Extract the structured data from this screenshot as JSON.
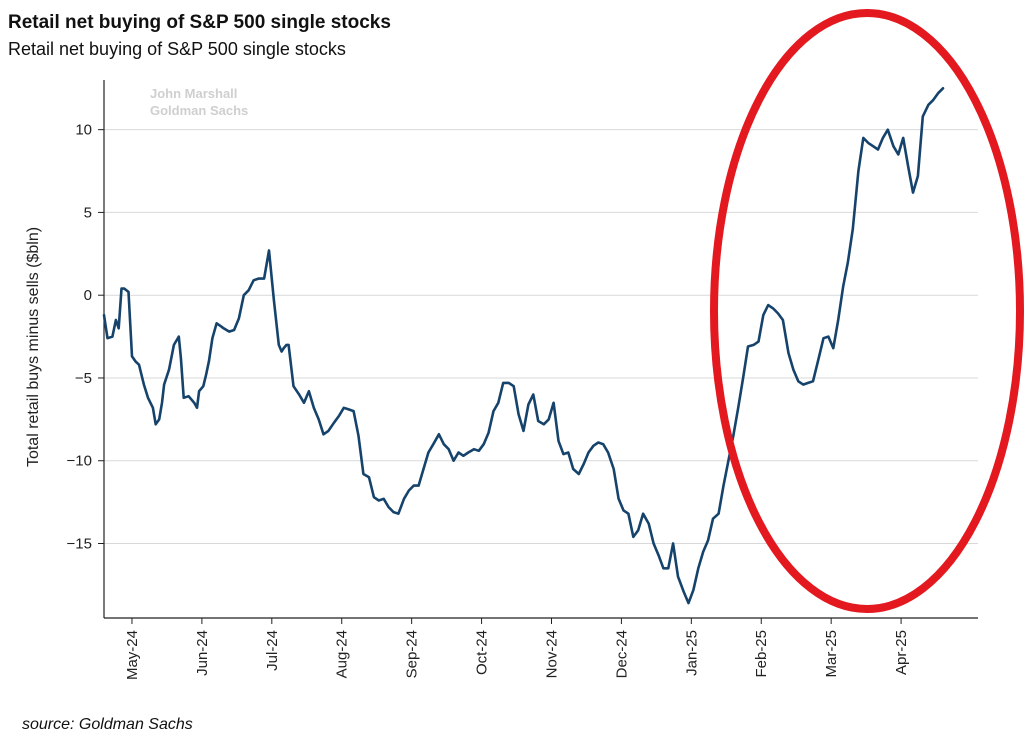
{
  "title": "Retail net buying of S&P 500 single stocks",
  "subtitle": "Retail net buying of S&P 500 single stocks",
  "source": "source: Goldman Sachs",
  "colors": {
    "line": "#15436b",
    "grid": "#d9d9d9",
    "axis": "#222222",
    "highlight": "#e3191f",
    "watermark": "#cfcfcf"
  },
  "chart_data": {
    "type": "line",
    "title": "Retail net buying of S&P 500 single stocks",
    "xlabel": "",
    "ylabel": "Total retail buys minus sells ($bln)",
    "ylim": [
      -19.5,
      13
    ],
    "yticks": [
      -15,
      -10,
      -5,
      0,
      5,
      10
    ],
    "ytick_labels": [
      "−15",
      "−10",
      "−5",
      "0",
      "5",
      "10"
    ],
    "xlim": [
      0,
      12.5
    ],
    "x_ticks": [
      {
        "label": "May-24",
        "x": 0.4
      },
      {
        "label": "Jun-24",
        "x": 1.4
      },
      {
        "label": "Jul-24",
        "x": 2.4
      },
      {
        "label": "Aug-24",
        "x": 3.4
      },
      {
        "label": "Sep-24",
        "x": 4.4
      },
      {
        "label": "Oct-24",
        "x": 5.4
      },
      {
        "label": "Nov-24",
        "x": 6.4
      },
      {
        "label": "Dec-24",
        "x": 7.4
      },
      {
        "label": "Jan-25",
        "x": 8.4
      },
      {
        "label": "Feb-25",
        "x": 9.4
      },
      {
        "label": "Mar-25",
        "x": 10.4
      },
      {
        "label": "Apr-25",
        "x": 11.4
      }
    ],
    "watermark": [
      "John Marshall",
      "Goldman Sachs"
    ],
    "annotation": "red ellipse highlighting the Feb-25 to Apr-25 rally",
    "series": [
      {
        "name": "Retail net buying",
        "x": [
          0.0,
          0.05,
          0.12,
          0.17,
          0.21,
          0.25,
          0.29,
          0.35,
          0.4,
          0.45,
          0.5,
          0.57,
          0.63,
          0.7,
          0.74,
          0.79,
          0.83,
          0.86,
          0.93,
          1.0,
          1.07,
          1.1,
          1.14,
          1.21,
          1.29,
          1.33,
          1.36,
          1.42,
          1.46,
          1.5,
          1.55,
          1.61,
          1.68,
          1.71,
          1.79,
          1.86,
          1.93,
          2.0,
          2.07,
          2.14,
          2.21,
          2.29,
          2.36,
          2.43,
          2.5,
          2.54,
          2.57,
          2.61,
          2.64,
          2.71,
          2.79,
          2.86,
          2.93,
          3.0,
          3.07,
          3.14,
          3.21,
          3.29,
          3.36,
          3.43,
          3.5,
          3.57,
          3.64,
          3.71,
          3.79,
          3.86,
          3.93,
          4.0,
          4.07,
          4.14,
          4.21,
          4.29,
          4.36,
          4.43,
          4.5,
          4.57,
          4.64,
          4.71,
          4.79,
          4.86,
          4.93,
          5.0,
          5.07,
          5.14,
          5.21,
          5.29,
          5.36,
          5.43,
          5.5,
          5.57,
          5.64,
          5.71,
          5.79,
          5.86,
          5.93,
          6.0,
          6.07,
          6.14,
          6.21,
          6.29,
          6.36,
          6.43,
          6.5,
          6.57,
          6.64,
          6.71,
          6.79,
          6.86,
          6.93,
          7.0,
          7.07,
          7.14,
          7.21,
          7.29,
          7.36,
          7.43,
          7.5,
          7.57,
          7.64,
          7.71,
          7.79,
          7.86,
          7.93,
          8.0,
          8.07,
          8.14,
          8.21,
          8.29,
          8.36,
          8.43,
          8.5,
          8.57,
          8.64,
          8.71,
          8.79,
          8.86,
          8.93,
          9.0,
          9.07,
          9.14,
          9.21,
          9.29,
          9.36,
          9.43,
          9.5,
          9.57,
          9.64,
          9.71,
          9.79,
          9.86,
          9.93,
          10.0,
          10.07,
          10.14,
          10.21,
          10.29,
          10.36,
          10.43,
          10.5,
          10.57,
          10.64,
          10.71,
          10.79,
          10.86,
          10.93,
          11.0,
          11.07,
          11.14,
          11.21,
          11.29,
          11.36,
          11.43,
          11.5,
          11.57,
          11.64,
          11.71,
          11.79,
          11.86,
          11.93,
          12.0
        ],
        "y": [
          -1.2,
          -2.6,
          -2.5,
          -1.5,
          -2.0,
          0.4,
          0.4,
          0.2,
          -3.7,
          -4.0,
          -4.2,
          -5.4,
          -6.2,
          -6.8,
          -7.8,
          -7.5,
          -6.5,
          -5.4,
          -4.5,
          -3.0,
          -2.5,
          -3.8,
          -6.2,
          -6.1,
          -6.5,
          -6.8,
          -5.8,
          -5.5,
          -4.8,
          -4.0,
          -2.6,
          -1.7,
          -1.9,
          -2.0,
          -2.2,
          -2.1,
          -1.4,
          0.0,
          0.3,
          0.9,
          1.0,
          1.0,
          2.7,
          -0.3,
          -3.0,
          -3.4,
          -3.2,
          -3.0,
          -3.0,
          -5.5,
          -6.0,
          -6.5,
          -5.8,
          -6.8,
          -7.5,
          -8.4,
          -8.2,
          -7.7,
          -7.3,
          -6.8,
          -6.9,
          -7.0,
          -8.5,
          -10.8,
          -11.0,
          -12.2,
          -12.4,
          -12.3,
          -12.8,
          -13.1,
          -13.2,
          -12.3,
          -11.8,
          -11.5,
          -11.5,
          -10.5,
          -9.5,
          -9.0,
          -8.4,
          -9.0,
          -9.3,
          -10.0,
          -9.5,
          -9.7,
          -9.5,
          -9.3,
          -9.4,
          -9.0,
          -8.3,
          -7.0,
          -6.5,
          -5.3,
          -5.3,
          -5.5,
          -7.2,
          -8.2,
          -6.6,
          -6.0,
          -7.6,
          -7.8,
          -7.5,
          -6.5,
          -8.8,
          -9.6,
          -9.5,
          -10.5,
          -10.8,
          -10.2,
          -9.5,
          -9.1,
          -8.9,
          -9.0,
          -9.5,
          -10.5,
          -12.3,
          -13.0,
          -13.2,
          -14.6,
          -14.2,
          -13.2,
          -13.8,
          -15.0,
          -15.7,
          -16.5,
          -16.5,
          -15.0,
          -17.0,
          -17.9,
          -18.6,
          -17.8,
          -16.5,
          -15.5,
          -14.8,
          -13.5,
          -13.2,
          -11.5,
          -10.0,
          -8.5,
          -6.8,
          -5.0,
          -3.1,
          -3.0,
          -2.8,
          -1.2,
          -0.6,
          -0.8,
          -1.1,
          -1.5,
          -3.5,
          -4.5,
          -5.2,
          -5.4,
          -5.3,
          -5.2,
          -4.0,
          -2.6,
          -2.5,
          -3.2,
          -1.5,
          0.5,
          2.0,
          4.0,
          7.5,
          9.5,
          9.2,
          9.0,
          8.8,
          9.5,
          10.0,
          9.0,
          8.5,
          9.5,
          7.8,
          6.2,
          7.2,
          10.8,
          11.5,
          11.8,
          12.2,
          12.5
        ]
      }
    ]
  }
}
